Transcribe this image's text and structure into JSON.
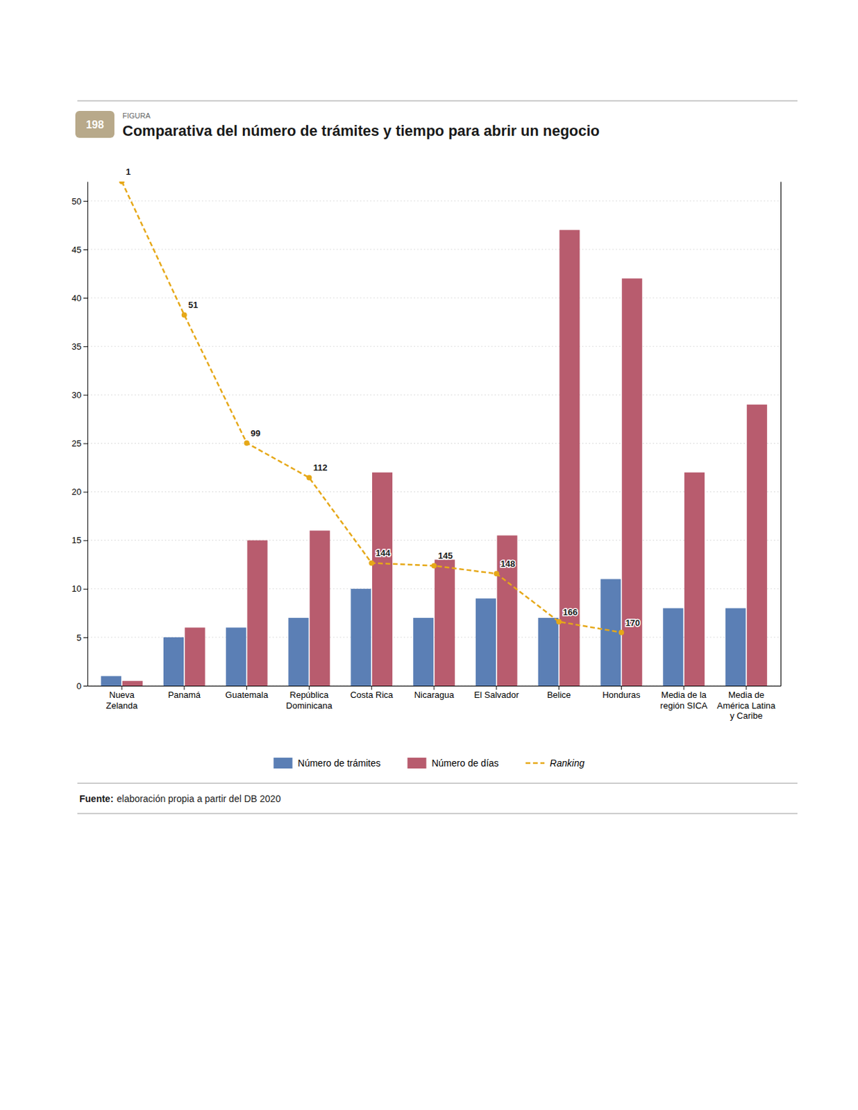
{
  "chart_data": {
    "type": "bar",
    "title": "Comparativa del número de trámites y tiempo para abrir un negocio",
    "figure_label": "FIGURA",
    "figure_number": "198",
    "source_label": "Fuente:",
    "source": "elaboración propia a partir del DB 2020",
    "categories": [
      "Nueva\nZelanda",
      "Panamá",
      "Guatemala",
      "República\nDominicana",
      "Costa Rica",
      "Nicaragua",
      "El Salvador",
      "Belice",
      "Honduras",
      "Media de la\nregión SICA",
      "Media de\nAmérica Latina\ny Caribe"
    ],
    "series": [
      {
        "name": "Número de trámites",
        "type": "bar",
        "color": "#5b7fb5",
        "values": [
          1,
          5,
          6,
          7,
          10,
          7,
          9,
          7,
          11,
          8,
          8
        ]
      },
      {
        "name": "Número de días",
        "type": "bar",
        "color": "#b85c6e",
        "values": [
          0.5,
          6,
          15,
          16,
          22,
          13,
          15.5,
          47,
          42,
          22,
          29
        ]
      },
      {
        "name": "Ranking",
        "type": "line",
        "axis": "y2",
        "color": "#e6a818",
        "line_style": "dashed",
        "marker": "circle",
        "data_labels": true,
        "values": [
          1,
          51,
          99,
          112,
          144,
          145,
          148,
          166,
          170,
          null,
          null
        ]
      }
    ],
    "ylim": [
      0,
      52
    ],
    "yticks": [
      0,
      5,
      10,
      15,
      20,
      25,
      30,
      35,
      40,
      45,
      50
    ],
    "y2lim": [
      190,
      1
    ],
    "y2ticks": [],
    "grid": true,
    "legend": "bottom"
  }
}
